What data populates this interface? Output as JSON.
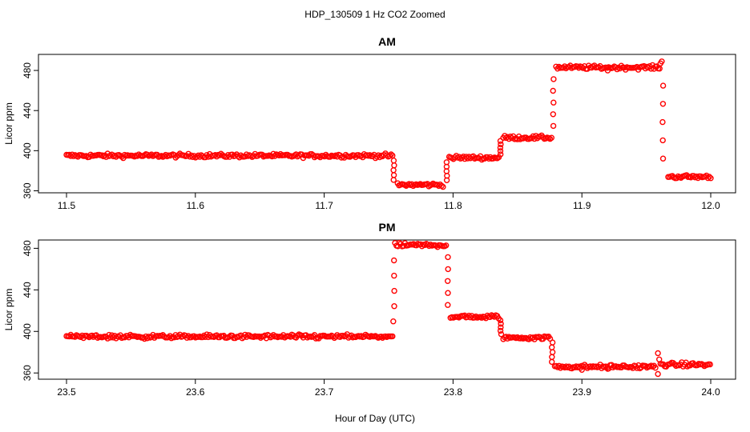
{
  "figure": {
    "title": "HDP_130509  1 Hz CO2 Zoomed",
    "xlabel": "Hour of Day (UTC)"
  },
  "chart_data": [
    {
      "type": "scatter",
      "title": "AM",
      "xlabel": "",
      "ylabel": "Licor ppm",
      "xlim": [
        11.5,
        12.0
      ],
      "ylim": [
        358,
        496
      ],
      "xticks": [
        "11.5",
        "11.6",
        "11.7",
        "11.8",
        "11.9",
        "12.0"
      ],
      "yticks": [
        "360",
        "400",
        "440",
        "480"
      ],
      "marker": "open-circle",
      "color": "#ff0000",
      "grid": false,
      "segments": [
        {
          "x": [
            11.5,
            11.753
          ],
          "y": 395,
          "noise": 1.3
        },
        {
          "x": [
            11.757,
            11.793
          ],
          "y": 366,
          "noise": 1.3
        },
        {
          "x": [
            11.797,
            11.836
          ],
          "y": 393,
          "noise": 1.3
        },
        {
          "x": [
            11.839,
            11.877
          ],
          "y": 413,
          "noise": 1.3
        },
        {
          "x": [
            11.88,
            11.961
          ],
          "y": 483,
          "noise": 1.3
        },
        {
          "x": [
            11.967,
            12.0
          ],
          "y": 374,
          "noise": 1.3
        }
      ],
      "transitions": [
        {
          "x": 11.754,
          "y": [
            395,
            366
          ]
        },
        {
          "x": 11.795,
          "y": [
            366,
            393
          ]
        },
        {
          "x": 11.837,
          "y": [
            393,
            413
          ]
        },
        {
          "x": 11.878,
          "y": [
            413,
            483
          ]
        },
        {
          "x": 11.963,
          "y": [
            483,
            374
          ]
        }
      ],
      "outliers": [
        {
          "x": 11.962,
          "y": 489
        },
        {
          "x": 11.961,
          "y": 487
        },
        {
          "x": 11.92,
          "y": 480
        }
      ]
    },
    {
      "type": "scatter",
      "title": "PM",
      "xlabel": "",
      "ylabel": "Licor ppm",
      "xlim": [
        23.5,
        24.0
      ],
      "ylim": [
        354,
        488
      ],
      "xticks": [
        "23.5",
        "23.6",
        "23.7",
        "23.8",
        "23.9",
        "24.0"
      ],
      "yticks": [
        "360",
        "400",
        "440",
        "480"
      ],
      "marker": "open-circle",
      "color": "#ff0000",
      "grid": false,
      "segments": [
        {
          "x": [
            23.5,
            23.753
          ],
          "y": 395,
          "noise": 1.3
        },
        {
          "x": [
            23.755,
            23.795
          ],
          "y": 483,
          "noise": 1.3
        },
        {
          "x": [
            23.798,
            23.836
          ],
          "y": 414,
          "noise": 1.3
        },
        {
          "x": [
            23.839,
            23.876
          ],
          "y": 394,
          "noise": 1.3
        },
        {
          "x": [
            23.879,
            23.958
          ],
          "y": 366,
          "noise": 1.3
        },
        {
          "x": [
            23.961,
            24.0
          ],
          "y": 368,
          "noise": 1.3
        }
      ],
      "transitions": [
        {
          "x": 23.754,
          "y": [
            395,
            483
          ]
        },
        {
          "x": 23.796,
          "y": [
            483,
            414
          ]
        },
        {
          "x": 23.837,
          "y": [
            414,
            394
          ]
        },
        {
          "x": 23.877,
          "y": [
            394,
            366
          ]
        }
      ],
      "outliers": [
        {
          "x": 23.959,
          "y": 359
        },
        {
          "x": 23.959,
          "y": 379
        },
        {
          "x": 23.96,
          "y": 373
        },
        {
          "x": 23.9,
          "y": 363
        },
        {
          "x": 23.92,
          "y": 364
        }
      ]
    }
  ]
}
